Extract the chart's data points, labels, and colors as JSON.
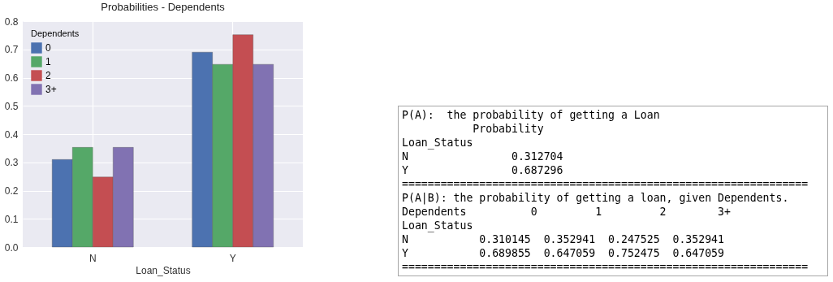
{
  "chart_data": [
    {
      "type": "bar",
      "title": "Probabilities - Dependents",
      "xlabel": "Loan_Status",
      "legend_title": "Dependents",
      "categories": [
        "N",
        "Y"
      ],
      "series": [
        {
          "name": "0",
          "color": "#4c72b0",
          "values": [
            0.31,
            0.69
          ]
        },
        {
          "name": "1",
          "color": "#55a868",
          "values": [
            0.353,
            0.647
          ]
        },
        {
          "name": "2",
          "color": "#c44e52",
          "values": [
            0.248,
            0.752
          ]
        },
        {
          "name": "3+",
          "color": "#8172b2",
          "values": [
            0.353,
            0.647
          ]
        }
      ],
      "ylim": [
        0,
        0.8
      ],
      "yticks": [
        {
          "value": 0,
          "label": "0.0"
        },
        0.1,
        0.2,
        0.3,
        0.4,
        0.5,
        0.6,
        0.7,
        0.8
      ],
      "grid": true,
      "legend": "top left"
    },
    {
      "type": "other",
      "annotations": [
        "P(A):  the probability of getting a Loan",
        "           Probability",
        "Loan_Status",
        "N                0.312704",
        "Y                0.687296",
        "===============================================================",
        "P(A|B): the probability of getting a loan, given Dependents.",
        "Dependents          0         1         2        3+",
        "Loan_Status",
        "N           0.310145  0.352941  0.247525  0.352941",
        "Y           0.689855  0.647059  0.752475  0.647059",
        "==============================================================="
      ]
    }
  ]
}
